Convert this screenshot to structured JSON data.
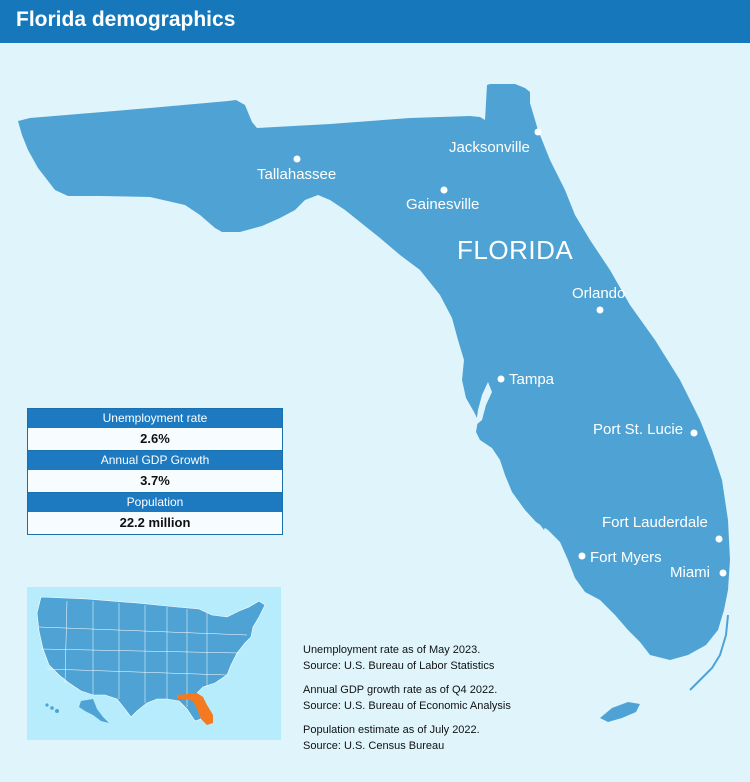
{
  "header": {
    "title": "Florida demographics"
  },
  "map": {
    "state_label": "FLORIDA",
    "colors": {
      "background": "#dff5fb",
      "land": "#4fa3d4",
      "highlight": "#f47920"
    },
    "cities": {
      "tallahassee": "Tallahassee",
      "jacksonville": "Jacksonville",
      "gainesville": "Gainesville",
      "orlando": "Orlando",
      "tampa": "Tampa",
      "port_st_lucie": "Port St. Lucie",
      "fort_lauderdale": "Fort Lauderdale",
      "fort_myers": "Fort Myers",
      "miami": "Miami"
    }
  },
  "stats": [
    {
      "label": "Unemployment rate",
      "value": "2.6%"
    },
    {
      "label": "Annual GDP Growth",
      "value": "3.7%"
    },
    {
      "label": "Population",
      "value": "22.2 million"
    }
  ],
  "notes": [
    {
      "line1": "Unemployment rate as of May 2023.",
      "line2": "Source: U.S. Bureau of Labor Statistics"
    },
    {
      "line1": "Annual GDP growth rate as of Q4 2022.",
      "line2": "Source: U.S. Bureau of Economic Analysis"
    },
    {
      "line1": "Population estimate as of July 2022.",
      "line2": "Source: U.S. Census Bureau"
    }
  ]
}
